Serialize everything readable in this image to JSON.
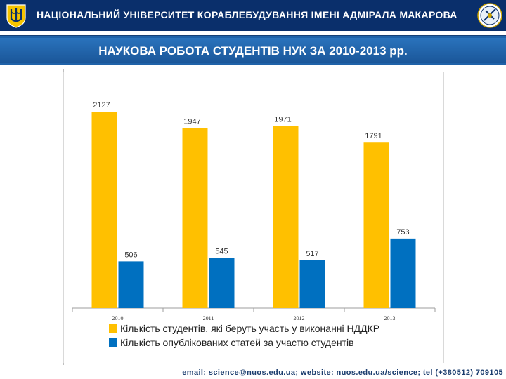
{
  "header": {
    "title": "НАЦІОНАЛЬНИЙ УНІВЕРСИТЕТ КОРАБЛЕБУДУВАННЯ ІМЕНІ АДМІРАЛА МАКАРОВА"
  },
  "slide": {
    "title": "НАУКОВА РОБОТА СТУДЕНТІВ НУК ЗА 2010-2013 рр."
  },
  "footer": {
    "contact": "email: science@nuos.edu.ua; website: nuos.edu.ua/science; tel (+380512) 709105"
  },
  "colors": {
    "header_bg": "#0a2f6b",
    "band": "#1f62a8",
    "series_students": "#ffc000",
    "series_articles": "#0070c0"
  },
  "chart_data": {
    "type": "bar",
    "categories": [
      "2010",
      "2011",
      "2012",
      "2013"
    ],
    "series": [
      {
        "name": "Кількість студентів, які беруть участь у виконанні НДДКР",
        "values": [
          2127,
          1947,
          1971,
          1791
        ]
      },
      {
        "name": "Кількість  опублікованих  статей за участю студентів",
        "values": [
          506,
          545,
          517,
          753
        ]
      }
    ],
    "ylim": [
      0,
      2200
    ],
    "grid": false,
    "legend_position": "bottom",
    "title": "",
    "xlabel": "",
    "ylabel": ""
  }
}
